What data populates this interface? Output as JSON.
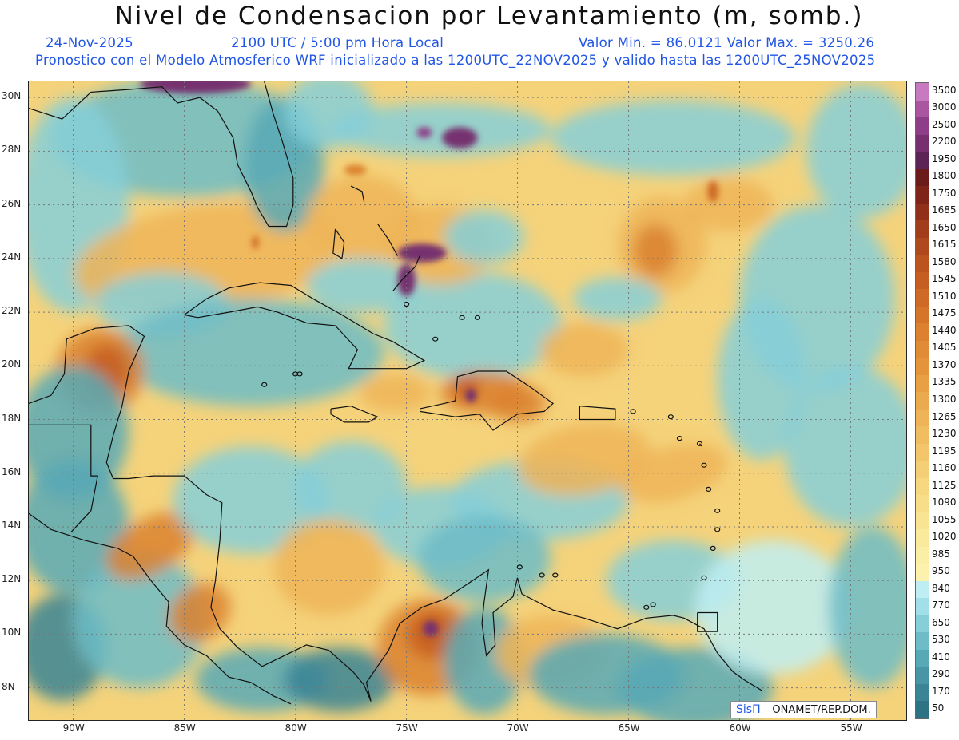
{
  "header": {
    "title": "Nivel de Condensacion por Levantamiento (m, somb.)",
    "date": "24-Nov-2025",
    "time": "2100 UTC / 5:00 pm Hora Local",
    "minmax": "Valor Min. = 86.0121  Valor Max. = 3250.26",
    "model_info": "Pronostico con el Modelo Atmosferico WRF inicializado a las 1200UTC_22NOV2025 y valido hasta las  1200UTC_25NOV2025"
  },
  "map": {
    "lat_labels": [
      "30N",
      "28N",
      "26N",
      "24N",
      "22N",
      "20N",
      "18N",
      "16N",
      "14N",
      "12N",
      "10N",
      "8N"
    ],
    "lon_labels": [
      "90W",
      "85W",
      "80W",
      "75W",
      "70W",
      "65W",
      "60W",
      "55W"
    ],
    "lat_values": [
      30,
      28,
      26,
      24,
      22,
      20,
      18,
      16,
      14,
      12,
      10,
      8
    ],
    "lon_values": [
      -90,
      -85,
      -80,
      -75,
      -70,
      -65,
      -60,
      -55
    ],
    "lat_range": [
      6.8,
      30.6
    ],
    "lon_range": [
      -92,
      -52.5
    ],
    "gridlines": "dotted"
  },
  "colorbar": {
    "levels": [
      "3500",
      "3000",
      "2500",
      "2200",
      "1950",
      "1800",
      "1750",
      "1685",
      "1650",
      "1615",
      "1580",
      "1545",
      "1510",
      "1475",
      "1440",
      "1405",
      "1370",
      "1335",
      "1300",
      "1265",
      "1230",
      "1195",
      "1160",
      "1125",
      "1090",
      "1055",
      "1020",
      "985",
      "950",
      "840",
      "770",
      "650",
      "530",
      "410",
      "290",
      "170",
      "50"
    ],
    "colors": [
      "#c77ac0",
      "#a9559f",
      "#8e3e88",
      "#76306f",
      "#5c2454",
      "#6b1c1a",
      "#7e2418",
      "#91301a",
      "#a23d1c",
      "#b0481e",
      "#bc5420",
      "#c65e22",
      "#ce6a26",
      "#d5752a",
      "#db812f",
      "#e08b35",
      "#e4953c",
      "#e8a044",
      "#ebaa4d",
      "#eeb457",
      "#f1bd61",
      "#f3c66b",
      "#f5cf75",
      "#f7d77f",
      "#f8de89",
      "#f9e493",
      "#faea9c",
      "#fbeea5",
      "#fcf2ad",
      "#bfeef2",
      "#a1e0e8",
      "#86cfd8",
      "#6dbcc7",
      "#58a9b6",
      "#4896a5",
      "#3a8495",
      "#2e7384"
    ]
  },
  "credit": {
    "logo": "SisΠ",
    "text": "– ONAMET/REP.DOM."
  }
}
